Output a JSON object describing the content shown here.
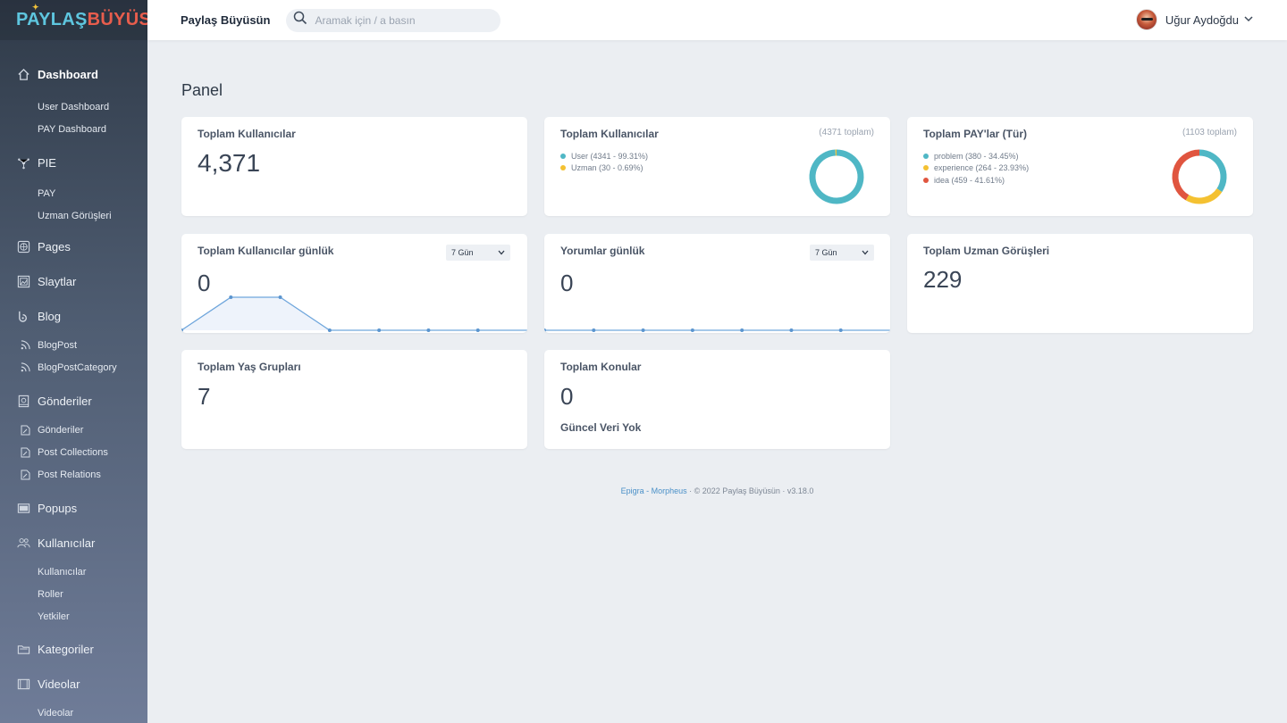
{
  "brand": {
    "logo_left": "PAYLAŞ",
    "logo_right": "BÜYÜSÜN"
  },
  "header": {
    "site_name": "Paylaş Büyüsün",
    "search_placeholder": "Aramak için / a basın",
    "user_name": "Uğur Aydoğdu"
  },
  "sidebar": {
    "dashboard": {
      "label": "Dashboard",
      "icon": "home-icon",
      "subs": [
        "User Dashboard",
        "PAY Dashboard"
      ]
    },
    "pie": {
      "label": "PIE",
      "icon": "network-icon",
      "subs": [
        "PAY",
        "Uzman Görüşleri"
      ]
    },
    "pages": {
      "label": "Pages",
      "icon": "globe-icon"
    },
    "slaytlar": {
      "label": "Slaytlar",
      "icon": "image-icon"
    },
    "blog": {
      "label": "Blog",
      "icon": "blog-icon",
      "subs": [
        "BlogPost",
        "BlogPostCategory"
      ]
    },
    "gonderiler": {
      "label": "Gönderiler",
      "icon": "book-icon",
      "subs": [
        "Gönderiler",
        "Post Collections",
        "Post Relations"
      ]
    },
    "popups": {
      "label": "Popups",
      "icon": "window-icon"
    },
    "kullanicilar": {
      "label": "Kullanıcılar",
      "icon": "users-icon",
      "subs": [
        "Kullanıcılar",
        "Roller",
        "Yetkiler"
      ]
    },
    "kategoriler": {
      "label": "Kategoriler",
      "icon": "folder-icon"
    },
    "videolar": {
      "label": "Videolar",
      "icon": "film-icon",
      "subs": [
        "Videolar"
      ]
    }
  },
  "page_title": "Panel",
  "cards": {
    "total_users": {
      "title": "Toplam Kullanıcılar",
      "value": "4,371"
    },
    "users_pie": {
      "title": "Toplam Kullanıcılar",
      "total_note": "(4371 toplam)",
      "legend": [
        {
          "label": "User (4341 - 99.31%)",
          "color": "#4fb7c5",
          "value": 4341
        },
        {
          "label": "Uzman (30 - 0.69%)",
          "color": "#f4c131",
          "value": 30
        }
      ]
    },
    "pay_pie": {
      "title": "Toplam PAY'lar (Tür)",
      "total_note": "(1103 toplam)",
      "legend": [
        {
          "label": "problem (380 - 34.45%)",
          "color": "#4fb7c5",
          "value": 380
        },
        {
          "label": "experience (264 - 23.93%)",
          "color": "#f4c131",
          "value": 264
        },
        {
          "label": "idea (459 - 41.61%)",
          "color": "#e0553f",
          "value": 459
        }
      ]
    },
    "daily_users": {
      "title": "Toplam Kullanıcılar günlük",
      "value": "0",
      "select": "7 Gün"
    },
    "daily_comments": {
      "title": "Yorumlar günlük",
      "value": "0",
      "select": "7 Gün"
    },
    "expert_opinions": {
      "title": "Toplam Uzman Görüşleri",
      "value": "229"
    },
    "age_groups": {
      "title": "Toplam Yaş Grupları",
      "value": "7"
    },
    "topics": {
      "title": "Toplam Konular",
      "value": "0",
      "note": "Güncel Veri Yok"
    }
  },
  "footer": {
    "link": "Epigra - Morpheus",
    "copyright": "© 2022 Paylaş Büyüsün",
    "version": "v3.18.0"
  },
  "chart_data": [
    {
      "type": "line",
      "x": [
        1,
        2,
        3,
        4,
        5,
        6,
        7
      ],
      "values": [
        0,
        1,
        1,
        0,
        0,
        0,
        0
      ]
    },
    {
      "type": "line",
      "x": [
        1,
        2,
        3,
        4,
        5,
        6,
        7
      ],
      "values": [
        0,
        0,
        0,
        0,
        0,
        0,
        0
      ]
    }
  ]
}
